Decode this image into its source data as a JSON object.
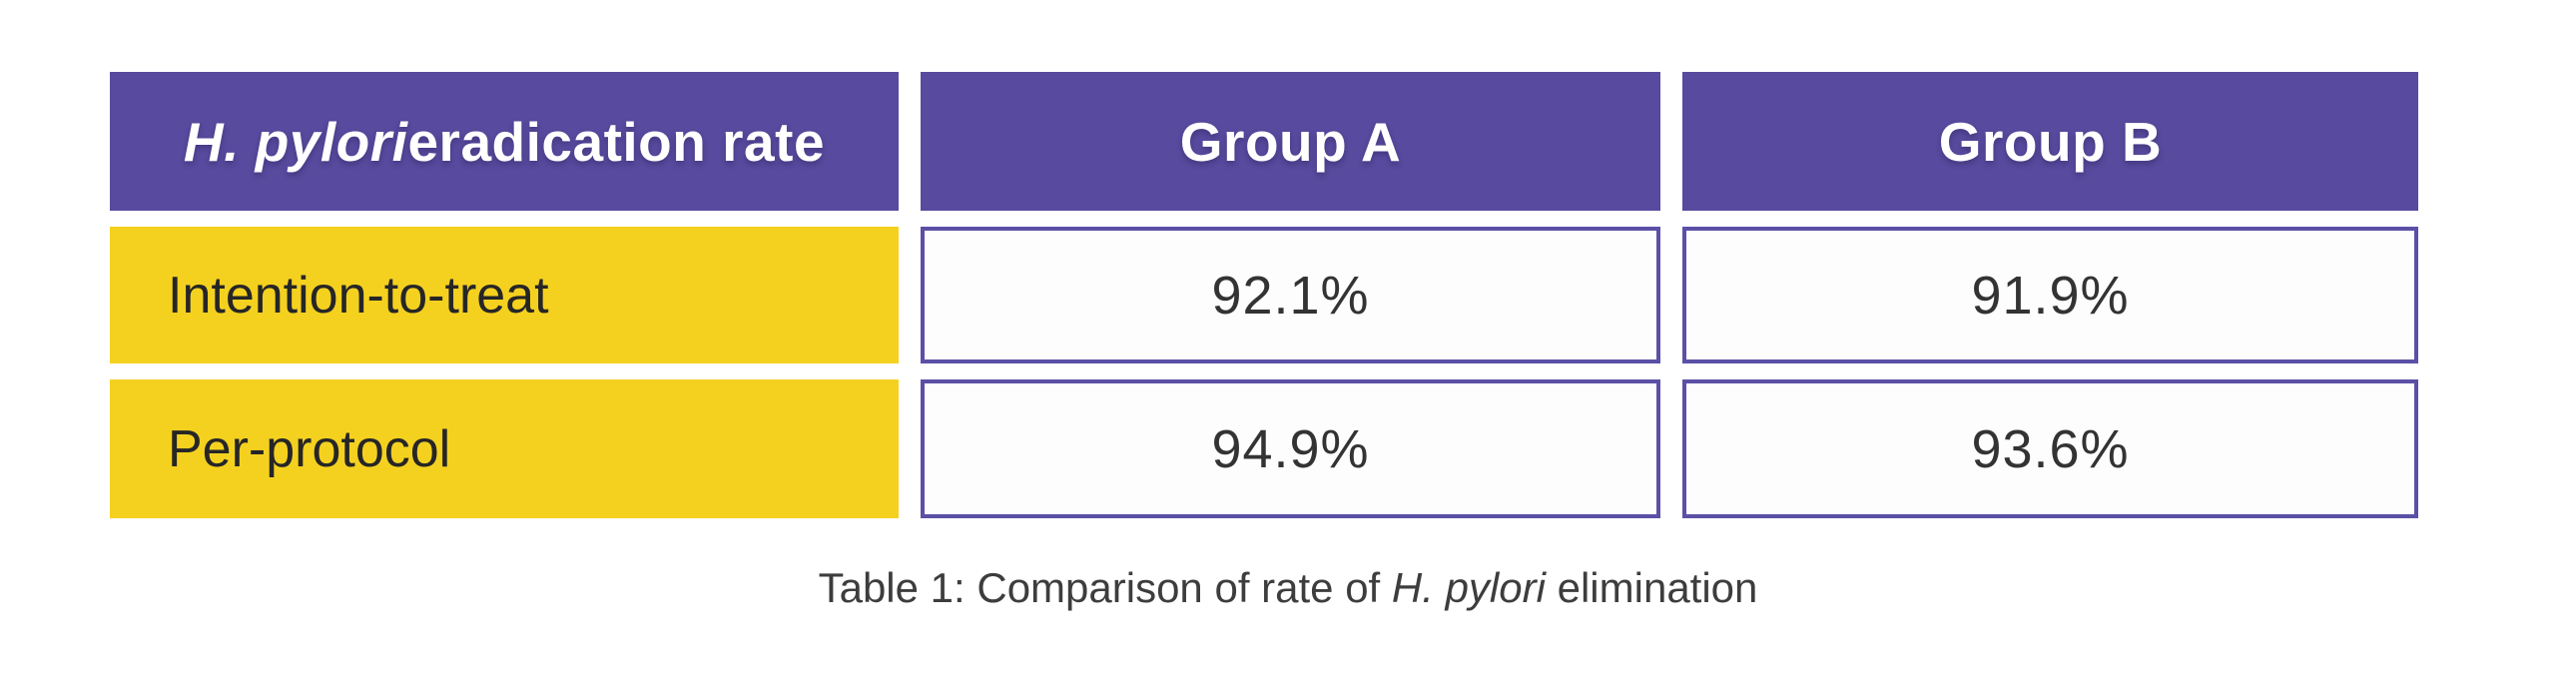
{
  "table": {
    "header": {
      "col1_italic": "H. pylori",
      "col1_rest": " eradication rate",
      "col2": "Group A",
      "col3": "Group B"
    },
    "rows": [
      {
        "label": "Intention-to-treat",
        "group_a": "92.1%",
        "group_b": "91.9%"
      },
      {
        "label": "Per-protocol",
        "group_a": "94.9%",
        "group_b": "93.6%"
      }
    ]
  },
  "caption": {
    "prefix": "Table 1: Comparison of rate of ",
    "italic": "H. pylori",
    "suffix": " elimination"
  },
  "colors": {
    "header_purple": "#584a9e",
    "value_cell_border_purple": "#5b50a6",
    "label_yellow": "#f5d11f",
    "header_text": "#ffffff",
    "body_text": "#262626",
    "value_text": "#333333",
    "caption_text": "#3d3d3d",
    "background": "#ffffff"
  },
  "chart_data": {
    "type": "table",
    "title": "Table 1: Comparison of rate of H. pylori elimination",
    "columns": [
      "H. pylori eradication rate",
      "Group A",
      "Group B"
    ],
    "rows": [
      [
        "Intention-to-treat",
        "92.1%",
        "91.9%"
      ],
      [
        "Per-protocol",
        "94.9%",
        "93.6%"
      ]
    ],
    "values": {
      "intention_to_treat": {
        "group_a": 92.1,
        "group_b": 91.9
      },
      "per_protocol": {
        "group_a": 94.9,
        "group_b": 93.6
      }
    },
    "units": "percent"
  }
}
